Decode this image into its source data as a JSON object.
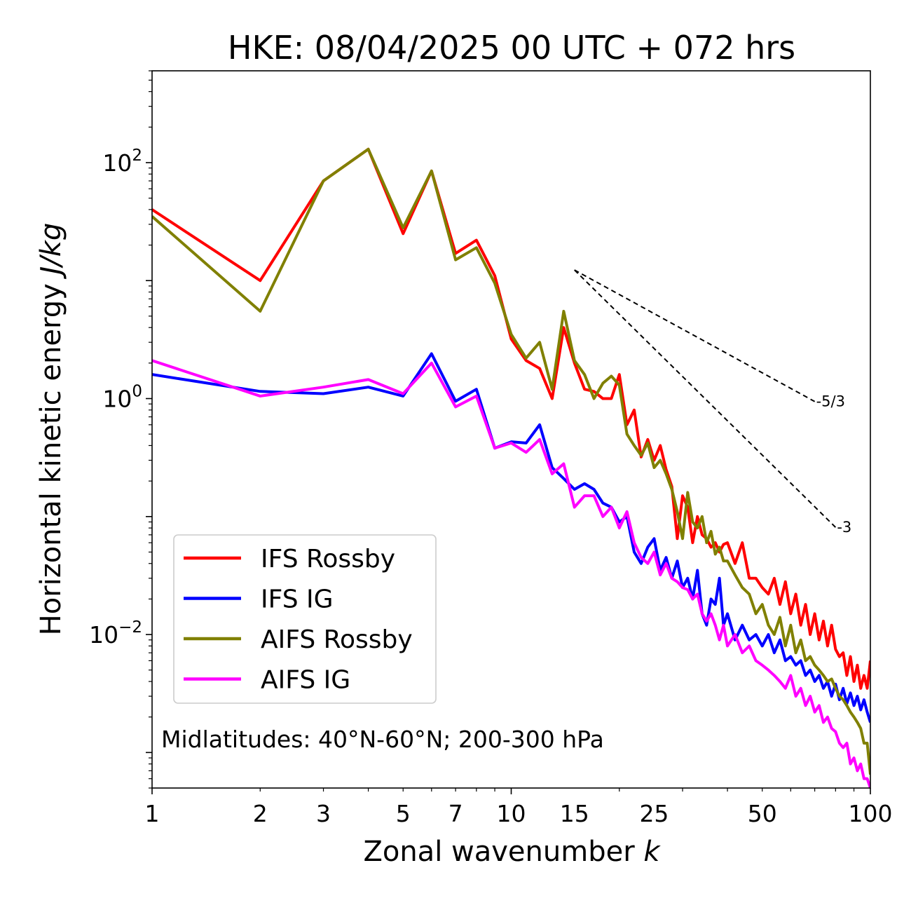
{
  "chart_data": {
    "type": "line",
    "title": "HKE: 08/04/2025 00 UTC + 072 hrs",
    "xlabel_main": "Zonal wavenumber ",
    "xlabel_var": "k",
    "ylabel_main": "Horizontal kinetic energy ",
    "ylabel_units": "J/kg",
    "x_scale": "log",
    "y_scale": "log",
    "xlim": [
      1,
      100
    ],
    "ylim": [
      0.0005,
      600
    ],
    "x_ticks": [
      1,
      2,
      3,
      5,
      7,
      10,
      15,
      25,
      50,
      100
    ],
    "x_tick_labels": [
      "1",
      "2",
      "3",
      "5",
      "7",
      "10",
      "15",
      "25",
      "50",
      "100"
    ],
    "y_ticks": [
      {
        "value": 100,
        "base": "10",
        "exp": "2"
      },
      {
        "value": 1,
        "base": "10",
        "exp": "0"
      },
      {
        "value": 0.01,
        "base": "10",
        "exp": "−2"
      }
    ],
    "grid": false,
    "legend_position": "lower-left",
    "annotation": "Midlatitudes: 40°N-60°N; 200-300 hPa",
    "reference_lines": [
      {
        "label": "-5/3",
        "slope": -1.6667,
        "x": [
          15,
          70
        ],
        "y_start": 12.3
      },
      {
        "label": "-3",
        "slope": -3,
        "x": [
          15,
          80
        ],
        "y_start": 12.3
      }
    ],
    "series": [
      {
        "name": "IFS Rossby",
        "color": "#ff0000",
        "x": [
          1,
          2,
          3,
          4,
          5,
          6,
          7,
          8,
          9,
          10,
          11,
          12,
          13,
          14,
          15,
          16,
          17,
          18,
          19,
          20,
          21,
          22,
          23,
          24,
          25,
          26,
          27,
          28,
          29,
          30,
          31,
          32,
          33,
          34,
          35,
          36,
          37,
          38,
          39,
          40,
          42,
          44,
          46,
          48,
          50,
          52,
          54,
          56,
          58,
          60,
          62,
          64,
          66,
          68,
          70,
          72,
          74,
          76,
          78,
          80,
          82,
          84,
          86,
          88,
          90,
          92,
          94,
          96,
          98,
          100
        ],
        "y": [
          40,
          10,
          70,
          130,
          25,
          85,
          17,
          22,
          11,
          3.2,
          2.1,
          1.8,
          1.0,
          4.0,
          2.0,
          1.2,
          1.15,
          1.0,
          1.0,
          1.6,
          0.6,
          0.8,
          0.32,
          0.45,
          0.3,
          0.4,
          0.25,
          0.18,
          0.065,
          0.15,
          0.12,
          0.06,
          0.1,
          0.07,
          0.065,
          0.055,
          0.06,
          0.05,
          0.058,
          0.06,
          0.04,
          0.06,
          0.03,
          0.03,
          0.025,
          0.022,
          0.03,
          0.018,
          0.028,
          0.015,
          0.022,
          0.012,
          0.018,
          0.01,
          0.015,
          0.009,
          0.013,
          0.008,
          0.012,
          0.0075,
          0.0065,
          0.007,
          0.0045,
          0.0065,
          0.004,
          0.0055,
          0.0035,
          0.0045,
          0.0035,
          0.006
        ]
      },
      {
        "name": "IFS IG",
        "color": "#0000ff",
        "x": [
          1,
          2,
          3,
          4,
          5,
          6,
          7,
          8,
          9,
          10,
          11,
          12,
          13,
          14,
          15,
          16,
          17,
          18,
          19,
          20,
          21,
          22,
          23,
          24,
          25,
          26,
          27,
          28,
          29,
          30,
          31,
          32,
          33,
          34,
          35,
          36,
          37,
          38,
          39,
          40,
          42,
          44,
          46,
          48,
          50,
          52,
          54,
          56,
          58,
          60,
          62,
          64,
          66,
          68,
          70,
          72,
          74,
          76,
          78,
          80,
          82,
          84,
          86,
          88,
          90,
          92,
          94,
          96,
          98,
          100
        ],
        "y": [
          1.6,
          1.15,
          1.1,
          1.25,
          1.05,
          2.4,
          0.95,
          1.2,
          0.38,
          0.43,
          0.42,
          0.6,
          0.26,
          0.21,
          0.17,
          0.19,
          0.17,
          0.13,
          0.12,
          0.09,
          0.1,
          0.05,
          0.04,
          0.055,
          0.065,
          0.035,
          0.045,
          0.03,
          0.042,
          0.025,
          0.03,
          0.02,
          0.035,
          0.015,
          0.012,
          0.02,
          0.018,
          0.03,
          0.012,
          0.015,
          0.009,
          0.012,
          0.009,
          0.01,
          0.008,
          0.01,
          0.007,
          0.009,
          0.006,
          0.0065,
          0.0055,
          0.006,
          0.0045,
          0.005,
          0.004,
          0.0045,
          0.0035,
          0.004,
          0.003,
          0.0038,
          0.0028,
          0.0035,
          0.0026,
          0.0032,
          0.0025,
          0.003,
          0.0023,
          0.0028,
          0.0022,
          0.0018
        ]
      },
      {
        "name": "AIFS Rossby",
        "color": "#808000",
        "x": [
          1,
          2,
          3,
          4,
          5,
          6,
          7,
          8,
          9,
          10,
          11,
          12,
          13,
          14,
          15,
          16,
          17,
          18,
          19,
          20,
          21,
          22,
          23,
          24,
          25,
          26,
          27,
          28,
          29,
          30,
          31,
          32,
          33,
          34,
          35,
          36,
          37,
          38,
          39,
          40,
          42,
          44,
          46,
          48,
          50,
          52,
          54,
          56,
          58,
          60,
          62,
          64,
          66,
          68,
          70,
          72,
          74,
          76,
          78,
          80,
          82,
          84,
          86,
          88,
          90,
          92,
          94,
          96,
          98,
          100
        ],
        "y": [
          35,
          5.5,
          70,
          130,
          28,
          85,
          15,
          19,
          9.5,
          3.5,
          2.2,
          3.0,
          1.2,
          5.5,
          2.1,
          1.6,
          1.0,
          1.35,
          1.55,
          1.3,
          0.5,
          0.4,
          0.33,
          0.42,
          0.26,
          0.3,
          0.23,
          0.17,
          0.11,
          0.065,
          0.16,
          0.09,
          0.08,
          0.1,
          0.06,
          0.075,
          0.048,
          0.055,
          0.042,
          0.042,
          0.032,
          0.025,
          0.022,
          0.015,
          0.018,
          0.012,
          0.01,
          0.014,
          0.008,
          0.012,
          0.007,
          0.009,
          0.006,
          0.0065,
          0.0055,
          0.005,
          0.0045,
          0.004,
          0.0042,
          0.0035,
          0.003,
          0.0028,
          0.0025,
          0.0022,
          0.002,
          0.0018,
          0.0016,
          0.0012,
          0.0012,
          0.00065
        ]
      },
      {
        "name": "AIFS IG",
        "color": "#ff00ff",
        "x": [
          1,
          2,
          3,
          4,
          5,
          6,
          7,
          8,
          9,
          10,
          11,
          12,
          13,
          14,
          15,
          16,
          17,
          18,
          19,
          20,
          21,
          22,
          23,
          24,
          25,
          26,
          27,
          28,
          29,
          30,
          31,
          32,
          33,
          34,
          35,
          36,
          37,
          38,
          39,
          40,
          42,
          44,
          46,
          48,
          50,
          52,
          54,
          56,
          58,
          60,
          62,
          64,
          66,
          68,
          70,
          72,
          74,
          76,
          78,
          80,
          82,
          84,
          86,
          88,
          90,
          92,
          94,
          96,
          98,
          100
        ],
        "y": [
          2.1,
          1.05,
          1.25,
          1.45,
          1.1,
          2.0,
          0.85,
          1.05,
          0.38,
          0.42,
          0.35,
          0.45,
          0.23,
          0.28,
          0.12,
          0.15,
          0.15,
          0.1,
          0.12,
          0.08,
          0.11,
          0.06,
          0.045,
          0.04,
          0.05,
          0.032,
          0.04,
          0.03,
          0.028,
          0.025,
          0.024,
          0.02,
          0.022,
          0.015,
          0.013,
          0.015,
          0.012,
          0.009,
          0.012,
          0.008,
          0.01,
          0.007,
          0.008,
          0.006,
          0.0055,
          0.005,
          0.0045,
          0.004,
          0.0035,
          0.0045,
          0.003,
          0.0035,
          0.0025,
          0.003,
          0.0022,
          0.0025,
          0.0018,
          0.002,
          0.0016,
          0.0015,
          0.0012,
          0.0011,
          0.0012,
          0.0008,
          0.0009,
          0.0007,
          0.0008,
          0.0006,
          0.0006,
          0.0005
        ]
      }
    ]
  }
}
